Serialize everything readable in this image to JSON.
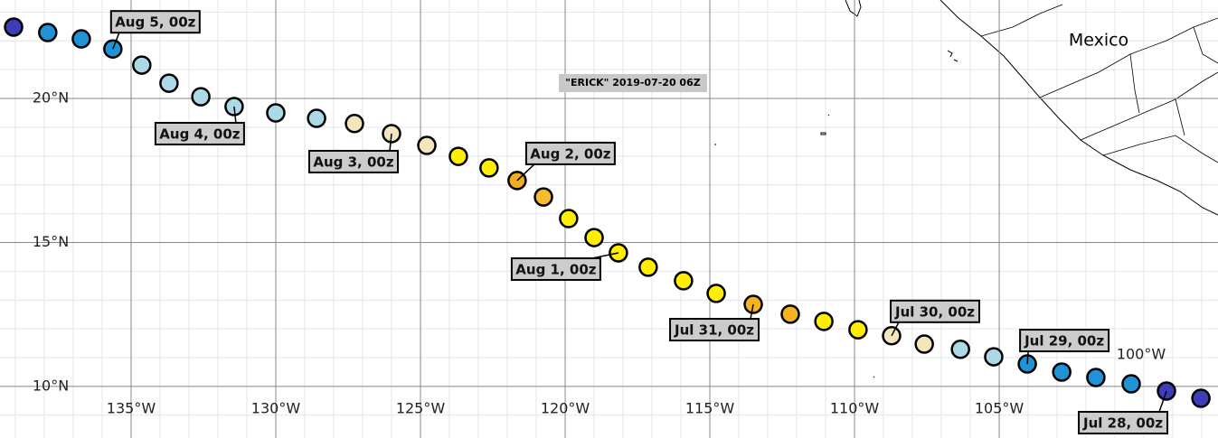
{
  "map": {
    "title": "\"ERICK\" 2019-07-20 06Z",
    "place_label": "Mexico",
    "extra_label": "100°W",
    "xlim": [
      -139.53,
      -97.44
    ],
    "ylim": [
      8.21,
      23.42
    ],
    "xticks": [
      {
        "value": -135,
        "label": "135°W"
      },
      {
        "value": -130,
        "label": "130°W"
      },
      {
        "value": -125,
        "label": "125°W"
      },
      {
        "value": -120,
        "label": "120°W"
      },
      {
        "value": -115,
        "label": "115°W"
      },
      {
        "value": -110,
        "label": "110°W"
      },
      {
        "value": -105,
        "label": "105°W"
      }
    ],
    "yticks": [
      {
        "value": 10,
        "label": "10°N"
      },
      {
        "value": 15,
        "label": "15°N"
      },
      {
        "value": 20,
        "label": "20°N"
      }
    ],
    "track": [
      {
        "lon": -139.06,
        "lat": 22.48,
        "color": "#3d3db8"
      },
      {
        "lon": -137.88,
        "lat": 22.29,
        "color": "#1f93d6"
      },
      {
        "lon": -136.72,
        "lat": 22.07,
        "color": "#1f93d6"
      },
      {
        "lon": -135.63,
        "lat": 21.72,
        "color": "#1f93d6",
        "label": "Aug 5, 00z"
      },
      {
        "lon": -134.63,
        "lat": 21.16,
        "color": "#add8e6"
      },
      {
        "lon": -133.69,
        "lat": 20.53,
        "color": "#add8e6"
      },
      {
        "lon": -132.59,
        "lat": 20.06,
        "color": "#add8e6"
      },
      {
        "lon": -131.44,
        "lat": 19.72,
        "color": "#add8e6",
        "label": "Aug 4, 00z"
      },
      {
        "lon": -130.0,
        "lat": 19.5,
        "color": "#add8e6"
      },
      {
        "lon": -128.59,
        "lat": 19.31,
        "color": "#add8e6"
      },
      {
        "lon": -127.28,
        "lat": 19.13,
        "color": "#f3e5bd"
      },
      {
        "lon": -126.0,
        "lat": 18.78,
        "color": "#f3e5bd",
        "label": "Aug 3, 00z"
      },
      {
        "lon": -124.78,
        "lat": 18.37,
        "color": "#f3e5bd"
      },
      {
        "lon": -123.69,
        "lat": 17.99,
        "color": "#ffee00"
      },
      {
        "lon": -122.63,
        "lat": 17.59,
        "color": "#ffee00"
      },
      {
        "lon": -121.66,
        "lat": 17.15,
        "color": "#f2ad1e",
        "label": "Aug 2, 00z"
      },
      {
        "lon": -120.75,
        "lat": 16.58,
        "color": "#f7bb2c"
      },
      {
        "lon": -119.88,
        "lat": 15.83,
        "color": "#ffee00"
      },
      {
        "lon": -119.0,
        "lat": 15.17,
        "color": "#ffee00"
      },
      {
        "lon": -118.16,
        "lat": 14.64,
        "color": "#ffee00",
        "label": "Aug 1, 00z"
      },
      {
        "lon": -117.13,
        "lat": 14.14,
        "color": "#ffee00"
      },
      {
        "lon": -115.91,
        "lat": 13.67,
        "color": "#ffee00"
      },
      {
        "lon": -114.78,
        "lat": 13.23,
        "color": "#ffee00"
      },
      {
        "lon": -113.5,
        "lat": 12.85,
        "color": "#f5b324",
        "label": "Jul 31, 00z"
      },
      {
        "lon": -112.22,
        "lat": 12.51,
        "color": "#f5b324"
      },
      {
        "lon": -111.06,
        "lat": 12.26,
        "color": "#ffee00"
      },
      {
        "lon": -109.88,
        "lat": 11.97,
        "color": "#ffee00"
      },
      {
        "lon": -108.72,
        "lat": 11.76,
        "color": "#f3e5bd",
        "label": "Jul 30, 00z"
      },
      {
        "lon": -107.59,
        "lat": 11.47,
        "color": "#f3e5bd"
      },
      {
        "lon": -106.34,
        "lat": 11.29,
        "color": "#add8e6"
      },
      {
        "lon": -105.19,
        "lat": 11.03,
        "color": "#add8e6"
      },
      {
        "lon": -104.03,
        "lat": 10.78,
        "color": "#1f93d6",
        "label": "Jul 29, 00z"
      },
      {
        "lon": -102.84,
        "lat": 10.5,
        "color": "#1f93d6"
      },
      {
        "lon": -101.66,
        "lat": 10.31,
        "color": "#1f93d6"
      },
      {
        "lon": -100.44,
        "lat": 10.09,
        "color": "#1f93d6"
      },
      {
        "lon": -99.22,
        "lat": 9.84,
        "color": "#3d3db8",
        "label": "Jul 28, 00z"
      },
      {
        "lon": -98.03,
        "lat": 9.59,
        "color": "#3d3db8"
      }
    ]
  }
}
